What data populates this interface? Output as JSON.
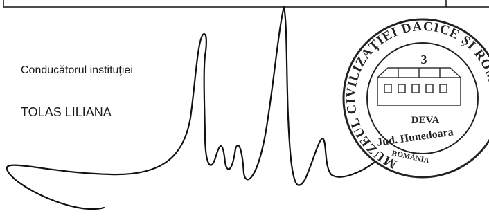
{
  "document": {
    "signatory": {
      "role": "Conducătorul instituţiei",
      "name": "TOLAS LILIANA"
    },
    "stamp": {
      "institution": "MUZEUL CIVILIZAŢIEI DACICE ŞI ROMANE",
      "number": "3",
      "city": "DEVA",
      "county": "Jud. Hunedoara",
      "country": "ROMÂNIA"
    }
  }
}
